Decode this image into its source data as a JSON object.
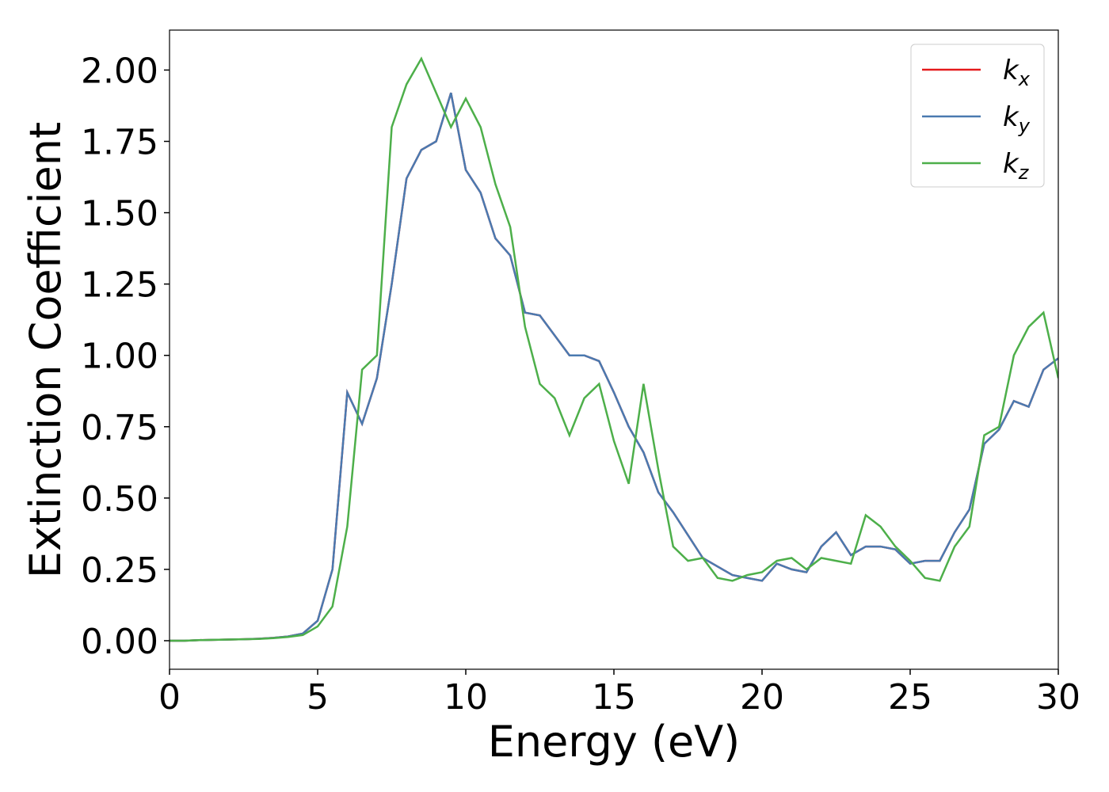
{
  "chart_data": {
    "type": "line",
    "x_label": "Energy (eV)",
    "y_label": "Extinction Coefficient",
    "x": [
      0,
      0.5,
      1,
      1.5,
      2,
      2.5,
      3,
      3.5,
      4,
      4.5,
      5,
      5.5,
      6,
      6.5,
      7,
      7.5,
      8,
      8.5,
      9,
      9.5,
      10,
      10.5,
      11,
      11.5,
      12,
      12.5,
      13,
      13.5,
      14,
      14.5,
      15,
      15.5,
      16,
      16.5,
      17,
      17.5,
      18,
      18.5,
      19,
      19.5,
      20,
      20.5,
      21,
      21.5,
      22,
      22.5,
      23,
      23.5,
      24,
      24.5,
      25,
      25.5,
      26,
      26.5,
      27,
      27.5,
      28,
      28.5,
      29,
      29.5,
      30
    ],
    "series": [
      {
        "name": "k_x",
        "color": "#e41a1c",
        "values": [
          0,
          0,
          0.002,
          0.003,
          0.004,
          0.005,
          0.007,
          0.01,
          0.015,
          0.025,
          0.07,
          0.25,
          0.87,
          0.76,
          0.92,
          1.25,
          1.62,
          1.72,
          1.75,
          1.92,
          1.65,
          1.57,
          1.41,
          1.35,
          1.15,
          1.14,
          1.07,
          1.0,
          1.0,
          0.98,
          0.87,
          0.75,
          0.66,
          0.52,
          0.45,
          0.37,
          0.29,
          0.26,
          0.23,
          0.22,
          0.21,
          0.27,
          0.25,
          0.24,
          0.33,
          0.38,
          0.3,
          0.33,
          0.33,
          0.32,
          0.27,
          0.28,
          0.28,
          0.38,
          0.46,
          0.69,
          0.74,
          0.84,
          0.82,
          0.95,
          0.99
        ]
      },
      {
        "name": "k_y",
        "color": "#4a7ab0",
        "values": [
          0,
          0,
          0.002,
          0.003,
          0.004,
          0.005,
          0.007,
          0.01,
          0.015,
          0.025,
          0.07,
          0.25,
          0.87,
          0.76,
          0.92,
          1.25,
          1.62,
          1.72,
          1.75,
          1.92,
          1.65,
          1.57,
          1.41,
          1.35,
          1.15,
          1.14,
          1.07,
          1.0,
          1.0,
          0.98,
          0.87,
          0.75,
          0.66,
          0.52,
          0.45,
          0.37,
          0.29,
          0.26,
          0.23,
          0.22,
          0.21,
          0.27,
          0.25,
          0.24,
          0.33,
          0.38,
          0.3,
          0.33,
          0.33,
          0.32,
          0.27,
          0.28,
          0.28,
          0.38,
          0.46,
          0.69,
          0.74,
          0.84,
          0.82,
          0.95,
          0.99
        ]
      },
      {
        "name": "k_z",
        "color": "#4daf4a",
        "values": [
          0,
          0,
          0.002,
          0.003,
          0.004,
          0.005,
          0.006,
          0.009,
          0.013,
          0.02,
          0.05,
          0.12,
          0.4,
          0.95,
          1.0,
          1.8,
          1.95,
          2.04,
          1.92,
          1.8,
          1.9,
          1.8,
          1.6,
          1.45,
          1.1,
          0.9,
          0.85,
          0.72,
          0.85,
          0.9,
          0.7,
          0.55,
          0.9,
          0.6,
          0.33,
          0.28,
          0.29,
          0.22,
          0.21,
          0.23,
          0.24,
          0.28,
          0.29,
          0.25,
          0.29,
          0.28,
          0.27,
          0.44,
          0.4,
          0.33,
          0.28,
          0.22,
          0.21,
          0.33,
          0.4,
          0.72,
          0.75,
          1.0,
          1.1,
          1.15,
          0.92
        ]
      }
    ],
    "xlim": [
      0,
      30
    ],
    "xticks": [
      0,
      5,
      10,
      15,
      20,
      25,
      30
    ],
    "ylim": [
      -0.1,
      2.14
    ],
    "yticks": [
      {
        "value": 0,
        "label": "0.00"
      },
      {
        "value": 0.25,
        "label": "0.25"
      },
      {
        "value": 0.5,
        "label": "0.50"
      },
      {
        "value": 0.75,
        "label": "0.75"
      },
      {
        "value": 1,
        "label": "1.00"
      },
      {
        "value": 1.25,
        "label": "1.25"
      },
      {
        "value": 1.5,
        "label": "1.50"
      },
      {
        "value": 1.75,
        "label": "1.75"
      },
      {
        "value": 2,
        "label": "2.00"
      }
    ],
    "grid": false,
    "legend": "upper right"
  }
}
